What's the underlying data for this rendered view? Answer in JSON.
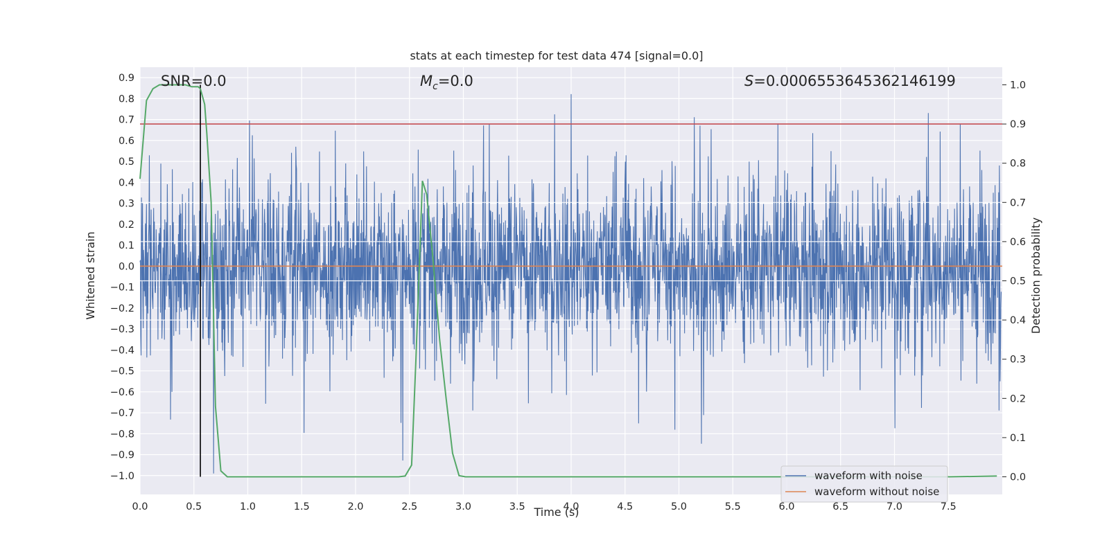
{
  "chart_data": {
    "type": "line",
    "title": "stats at each timestep for test data 474 [signal=0.0]",
    "xlabel": "Time (s)",
    "ylabel": "Whitened strain",
    "y2label": "Detection probability",
    "xlim": [
      0.0,
      8.0
    ],
    "ylim": [
      -1.09,
      0.95
    ],
    "y2lim": [
      -0.045,
      1.045
    ],
    "xticks": [
      "0.0",
      "0.5",
      "1.0",
      "1.5",
      "2.0",
      "2.5",
      "3.0",
      "3.5",
      "4.0",
      "4.5",
      "5.0",
      "5.5",
      "6.0",
      "6.5",
      "7.0",
      "7.5"
    ],
    "yticks": [
      "0.9",
      "0.8",
      "0.7",
      "0.6",
      "0.5",
      "0.4",
      "0.3",
      "0.2",
      "0.1",
      "0.0",
      "−0.1",
      "−0.2",
      "−0.3",
      "−0.4",
      "−0.5",
      "−0.6",
      "−0.7",
      "−0.8",
      "−0.9",
      "−1.0"
    ],
    "y2ticks": [
      "1.0",
      "0.9",
      "0.8",
      "0.7",
      "0.6",
      "0.5",
      "0.4",
      "0.3",
      "0.2",
      "0.1",
      "0.0"
    ],
    "annotations": {
      "snr": "SNR=0.0",
      "mc_symbol": "M",
      "mc_sub": "c",
      "mc_value": "=0.0",
      "s_symbol": "S",
      "s_value": "=0.0006553645362146199"
    },
    "threshold_prob": 0.9,
    "marker_time": 0.56,
    "series": [
      {
        "name": "waveform with noise",
        "color": "#4c72b0",
        "kind": "noise",
        "t_start": 0.0,
        "t_end": 7.99
      },
      {
        "name": "waveform without noise",
        "color": "#dd8452",
        "kind": "constant",
        "value": 0.0
      }
    ],
    "detection_probability": {
      "color": "#55a868",
      "t": [
        0.0,
        0.06,
        0.12,
        0.18,
        0.24,
        0.3,
        0.36,
        0.42,
        0.48,
        0.54,
        0.56,
        0.6,
        0.62,
        0.66,
        0.7,
        0.75,
        0.81,
        0.9,
        1.2,
        1.5,
        1.8,
        2.1,
        2.31,
        2.4,
        2.46,
        2.52,
        2.56,
        2.6,
        2.62,
        2.66,
        2.72,
        2.78,
        2.84,
        2.9,
        2.96,
        3.02,
        3.2,
        3.6,
        4.0,
        5.0,
        6.0,
        7.0,
        7.5,
        7.95
      ],
      "p": [
        0.76,
        0.96,
        0.99,
        1.0,
        1.0,
        1.0,
        1.0,
        1.0,
        0.995,
        0.995,
        0.99,
        0.95,
        0.875,
        0.7,
        0.18,
        0.015,
        0.0,
        0.0,
        0.0,
        0.0,
        0.0,
        0.0,
        0.0,
        0.0,
        0.002,
        0.03,
        0.3,
        0.6,
        0.755,
        0.72,
        0.55,
        0.35,
        0.2,
        0.06,
        0.003,
        0.0,
        0.0,
        0.0,
        0.0,
        0.0,
        0.0,
        0.0,
        0.0,
        0.002
      ]
    },
    "legend": {
      "position": "lower-right",
      "entries": [
        "waveform with noise",
        "waveform without noise"
      ]
    }
  },
  "colors": {
    "axes_bg": "#eaeaf2",
    "grid": "#ffffff",
    "threshold": "#c44e52",
    "marker": "#000000"
  }
}
